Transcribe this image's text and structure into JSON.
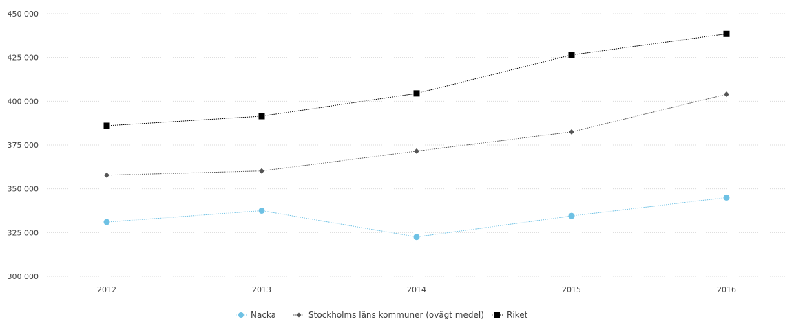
{
  "chart_data": {
    "type": "line",
    "categories": [
      "2012",
      "2013",
      "2014",
      "2015",
      "2016"
    ],
    "ylim": [
      300000,
      450000
    ],
    "yticks": [
      300000,
      325000,
      350000,
      375000,
      400000,
      425000,
      450000
    ],
    "ytick_labels": [
      "300 000",
      "325 000",
      "350 000",
      "375 000",
      "400 000",
      "425 000",
      "450 000"
    ],
    "grid": true,
    "legend_position": "bottom",
    "series": [
      {
        "name": "Nacka",
        "values": [
          331000,
          337500,
          322500,
          334500,
          345000
        ],
        "color": "#6ec1e4",
        "marker": "circle"
      },
      {
        "name": "Stockholms läns kommuner (ovägt medel)",
        "values": [
          357800,
          360200,
          371500,
          382500,
          404000
        ],
        "color": "#555555",
        "marker": "diamond"
      },
      {
        "name": "Riket",
        "values": [
          386000,
          391500,
          404500,
          426500,
          438500
        ],
        "color": "#000000",
        "marker": "square"
      }
    ]
  }
}
